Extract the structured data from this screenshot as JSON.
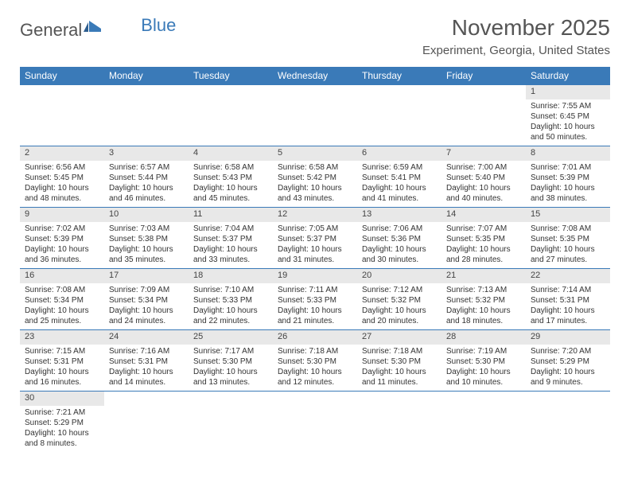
{
  "logo": {
    "text1": "General",
    "text2": "Blue"
  },
  "title": "November 2025",
  "location": "Experiment, Georgia, United States",
  "colors": {
    "header_bg": "#3a7ab8",
    "header_text": "#ffffff",
    "daynum_bg": "#e8e8e8",
    "border": "#3a7ab8"
  },
  "weekdays": [
    "Sunday",
    "Monday",
    "Tuesday",
    "Wednesday",
    "Thursday",
    "Friday",
    "Saturday"
  ],
  "weeks": [
    {
      "nums": [
        "",
        "",
        "",
        "",
        "",
        "",
        "1"
      ],
      "details": [
        "",
        "",
        "",
        "",
        "",
        "",
        "Sunrise: 7:55 AM\nSunset: 6:45 PM\nDaylight: 10 hours and 50 minutes."
      ]
    },
    {
      "nums": [
        "2",
        "3",
        "4",
        "5",
        "6",
        "7",
        "8"
      ],
      "details": [
        "Sunrise: 6:56 AM\nSunset: 5:45 PM\nDaylight: 10 hours and 48 minutes.",
        "Sunrise: 6:57 AM\nSunset: 5:44 PM\nDaylight: 10 hours and 46 minutes.",
        "Sunrise: 6:58 AM\nSunset: 5:43 PM\nDaylight: 10 hours and 45 minutes.",
        "Sunrise: 6:58 AM\nSunset: 5:42 PM\nDaylight: 10 hours and 43 minutes.",
        "Sunrise: 6:59 AM\nSunset: 5:41 PM\nDaylight: 10 hours and 41 minutes.",
        "Sunrise: 7:00 AM\nSunset: 5:40 PM\nDaylight: 10 hours and 40 minutes.",
        "Sunrise: 7:01 AM\nSunset: 5:39 PM\nDaylight: 10 hours and 38 minutes."
      ]
    },
    {
      "nums": [
        "9",
        "10",
        "11",
        "12",
        "13",
        "14",
        "15"
      ],
      "details": [
        "Sunrise: 7:02 AM\nSunset: 5:39 PM\nDaylight: 10 hours and 36 minutes.",
        "Sunrise: 7:03 AM\nSunset: 5:38 PM\nDaylight: 10 hours and 35 minutes.",
        "Sunrise: 7:04 AM\nSunset: 5:37 PM\nDaylight: 10 hours and 33 minutes.",
        "Sunrise: 7:05 AM\nSunset: 5:37 PM\nDaylight: 10 hours and 31 minutes.",
        "Sunrise: 7:06 AM\nSunset: 5:36 PM\nDaylight: 10 hours and 30 minutes.",
        "Sunrise: 7:07 AM\nSunset: 5:35 PM\nDaylight: 10 hours and 28 minutes.",
        "Sunrise: 7:08 AM\nSunset: 5:35 PM\nDaylight: 10 hours and 27 minutes."
      ]
    },
    {
      "nums": [
        "16",
        "17",
        "18",
        "19",
        "20",
        "21",
        "22"
      ],
      "details": [
        "Sunrise: 7:08 AM\nSunset: 5:34 PM\nDaylight: 10 hours and 25 minutes.",
        "Sunrise: 7:09 AM\nSunset: 5:34 PM\nDaylight: 10 hours and 24 minutes.",
        "Sunrise: 7:10 AM\nSunset: 5:33 PM\nDaylight: 10 hours and 22 minutes.",
        "Sunrise: 7:11 AM\nSunset: 5:33 PM\nDaylight: 10 hours and 21 minutes.",
        "Sunrise: 7:12 AM\nSunset: 5:32 PM\nDaylight: 10 hours and 20 minutes.",
        "Sunrise: 7:13 AM\nSunset: 5:32 PM\nDaylight: 10 hours and 18 minutes.",
        "Sunrise: 7:14 AM\nSunset: 5:31 PM\nDaylight: 10 hours and 17 minutes."
      ]
    },
    {
      "nums": [
        "23",
        "24",
        "25",
        "26",
        "27",
        "28",
        "29"
      ],
      "details": [
        "Sunrise: 7:15 AM\nSunset: 5:31 PM\nDaylight: 10 hours and 16 minutes.",
        "Sunrise: 7:16 AM\nSunset: 5:31 PM\nDaylight: 10 hours and 14 minutes.",
        "Sunrise: 7:17 AM\nSunset: 5:30 PM\nDaylight: 10 hours and 13 minutes.",
        "Sunrise: 7:18 AM\nSunset: 5:30 PM\nDaylight: 10 hours and 12 minutes.",
        "Sunrise: 7:18 AM\nSunset: 5:30 PM\nDaylight: 10 hours and 11 minutes.",
        "Sunrise: 7:19 AM\nSunset: 5:30 PM\nDaylight: 10 hours and 10 minutes.",
        "Sunrise: 7:20 AM\nSunset: 5:29 PM\nDaylight: 10 hours and 9 minutes."
      ]
    },
    {
      "nums": [
        "30",
        "",
        "",
        "",
        "",
        "",
        ""
      ],
      "details": [
        "Sunrise: 7:21 AM\nSunset: 5:29 PM\nDaylight: 10 hours and 8 minutes.",
        "",
        "",
        "",
        "",
        "",
        ""
      ]
    }
  ]
}
